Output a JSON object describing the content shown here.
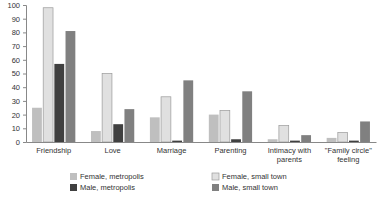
{
  "chart_data": {
    "type": "bar",
    "categories": [
      "Friendship",
      "Love",
      "Marriage",
      "Parenting",
      "Intimacy with parents",
      "\"Family circle\" feeling"
    ],
    "series": [
      {
        "name": "Female, metropolis",
        "color": "#bfbfbf",
        "values": [
          25,
          8,
          18,
          20,
          2,
          3
        ]
      },
      {
        "name": "Female, small town",
        "color": "#e0e0e0",
        "values": [
          98,
          50,
          33,
          23,
          12,
          7
        ]
      },
      {
        "name": "Male, metropolis",
        "color": "#404040",
        "values": [
          57,
          13,
          1,
          2,
          1,
          1
        ]
      },
      {
        "name": "Male, small town",
        "color": "#808080",
        "values": [
          81,
          24,
          45,
          37,
          5,
          15
        ]
      }
    ],
    "ylim": [
      0,
      100
    ],
    "yticks": [
      0,
      10,
      20,
      30,
      40,
      50,
      60,
      70,
      80,
      90,
      100
    ],
    "grid": false,
    "legend": "bottom"
  }
}
